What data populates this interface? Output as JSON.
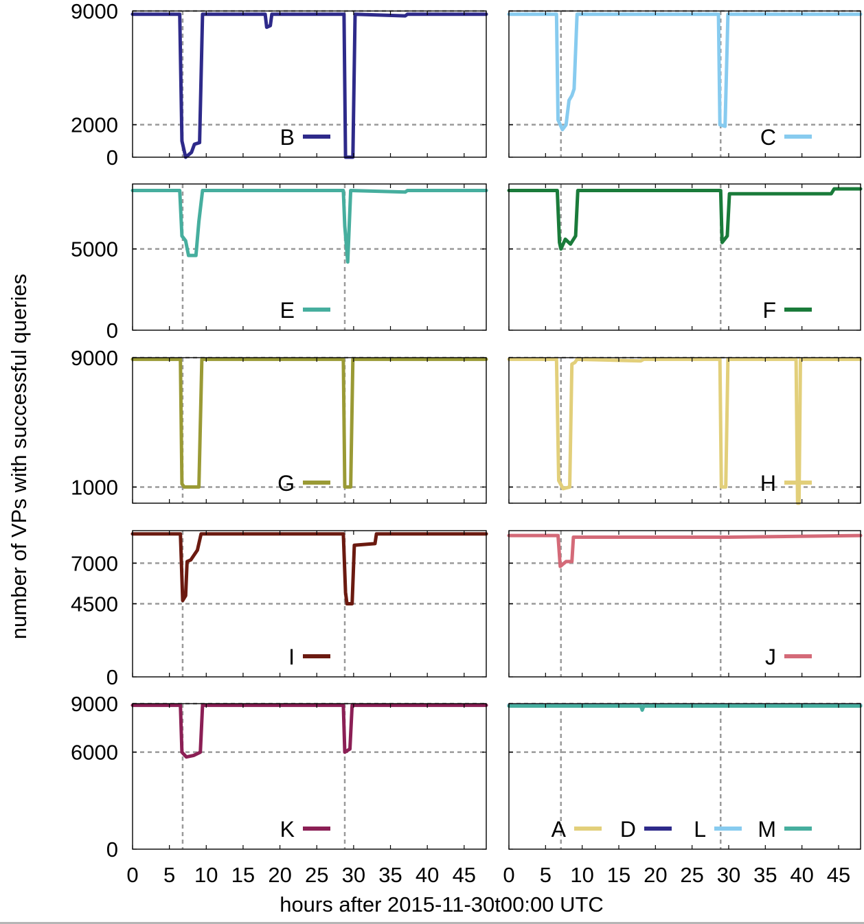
{
  "figure": {
    "ylabel": "number of VPs with successful queries",
    "xlabel": "hours after 2015-11-30t00:00 UTC"
  },
  "chart_data": [
    {
      "type": "line",
      "panel": "B",
      "xlim": [
        0,
        48
      ],
      "ylim": [
        0,
        9000
      ],
      "yticks": [
        0,
        2000,
        9000
      ],
      "xticks": [
        0,
        5,
        10,
        15,
        20,
        25,
        30,
        35,
        40,
        45
      ],
      "grid": {
        "y": [
          2000,
          9000
        ],
        "x": [
          6.8,
          28.8
        ]
      },
      "series": [
        {
          "name": "B",
          "color": "#2e2a8a",
          "points": [
            [
              0,
              8800
            ],
            [
              6.4,
              8800
            ],
            [
              6.7,
              1000
            ],
            [
              7.2,
              0
            ],
            [
              8.0,
              300
            ],
            [
              8.4,
              800
            ],
            [
              9.1,
              900
            ],
            [
              9.5,
              8800
            ],
            [
              18,
              8800
            ],
            [
              18.2,
              8000
            ],
            [
              18.7,
              8100
            ],
            [
              18.9,
              8800
            ],
            [
              28.7,
              8800
            ],
            [
              28.9,
              0
            ],
            [
              29.9,
              0
            ],
            [
              30.2,
              8800
            ],
            [
              37,
              8700
            ],
            [
              37.3,
              8800
            ],
            [
              48,
              8800
            ]
          ]
        }
      ],
      "legend": "bottom-center"
    },
    {
      "type": "line",
      "panel": "C",
      "xlim": [
        0,
        48
      ],
      "ylim": [
        0,
        9000
      ],
      "yticks": [
        0,
        2000,
        9000
      ],
      "xticks": [
        0,
        5,
        10,
        15,
        20,
        25,
        30,
        35,
        40,
        45
      ],
      "grid": {
        "y": [
          2000,
          9000
        ],
        "x": [
          7.1,
          28.9
        ]
      },
      "series": [
        {
          "name": "C",
          "color": "#87cbef",
          "points": [
            [
              0,
              8800
            ],
            [
              6.5,
              8800
            ],
            [
              6.7,
              2300
            ],
            [
              7.3,
              1700
            ],
            [
              7.8,
              2000
            ],
            [
              8.2,
              3500
            ],
            [
              8.6,
              3800
            ],
            [
              8.9,
              4200
            ],
            [
              9.3,
              8800
            ],
            [
              28.6,
              8800
            ],
            [
              28.8,
              2000
            ],
            [
              29.5,
              1900
            ],
            [
              29.9,
              8800
            ],
            [
              48,
              8800
            ]
          ]
        }
      ],
      "legend": "bottom-center"
    },
    {
      "type": "line",
      "panel": "E",
      "xlim": [
        0,
        48
      ],
      "ylim": [
        0,
        9000
      ],
      "yticks": [
        0,
        5000
      ],
      "xticks": [
        0,
        5,
        10,
        15,
        20,
        25,
        30,
        35,
        40,
        45
      ],
      "grid": {
        "y": [
          5000
        ],
        "x": [
          6.8,
          28.8
        ]
      },
      "series": [
        {
          "name": "E",
          "color": "#46ae9e",
          "points": [
            [
              0,
              8600
            ],
            [
              6.4,
              8600
            ],
            [
              6.7,
              5800
            ],
            [
              7.2,
              5500
            ],
            [
              7.6,
              4600
            ],
            [
              8.6,
              4600
            ],
            [
              9.0,
              6700
            ],
            [
              9.5,
              8600
            ],
            [
              28.6,
              8600
            ],
            [
              28.8,
              6400
            ],
            [
              29.2,
              4200
            ],
            [
              29.6,
              8600
            ],
            [
              37,
              8500
            ],
            [
              37.3,
              8600
            ],
            [
              48,
              8600
            ]
          ]
        }
      ],
      "legend": "bottom-center"
    },
    {
      "type": "line",
      "panel": "F",
      "xlim": [
        0,
        48
      ],
      "ylim": [
        0,
        9000
      ],
      "yticks": [
        0,
        5000
      ],
      "xticks": [
        0,
        5,
        10,
        15,
        20,
        25,
        30,
        35,
        40,
        45
      ],
      "grid": {
        "y": [
          5000
        ],
        "x": [
          7.1,
          28.9
        ]
      },
      "series": [
        {
          "name": "F",
          "color": "#1a7b3a",
          "points": [
            [
              0,
              8600
            ],
            [
              6.6,
              8600
            ],
            [
              6.9,
              5400
            ],
            [
              7.1,
              5000
            ],
            [
              7.7,
              5600
            ],
            [
              8.4,
              5300
            ],
            [
              9.1,
              5800
            ],
            [
              9.4,
              8600
            ],
            [
              28.9,
              8600
            ],
            [
              29.1,
              5400
            ],
            [
              29.8,
              5800
            ],
            [
              30.1,
              8400
            ],
            [
              40,
              8400
            ],
            [
              44,
              8400
            ],
            [
              44.4,
              8700
            ],
            [
              48,
              8700
            ]
          ]
        }
      ],
      "legend": "bottom-center"
    },
    {
      "type": "line",
      "panel": "G",
      "xlim": [
        0,
        48
      ],
      "ylim": [
        0,
        9000
      ],
      "yticks": [
        1000,
        9000
      ],
      "xticks": [
        0,
        5,
        10,
        15,
        20,
        25,
        30,
        35,
        40,
        45
      ],
      "grid": {
        "y": [
          1000,
          9000
        ],
        "x": [
          6.8,
          28.8
        ]
      },
      "series": [
        {
          "name": "G",
          "color": "#9a9a35",
          "points": [
            [
              0,
              8900
            ],
            [
              6.5,
              8900
            ],
            [
              6.7,
              1200
            ],
            [
              7.0,
              1000
            ],
            [
              8.2,
              1000
            ],
            [
              9.0,
              1000
            ],
            [
              9.4,
              8900
            ],
            [
              28.6,
              8900
            ],
            [
              28.8,
              1000
            ],
            [
              29.6,
              1000
            ],
            [
              29.9,
              8900
            ],
            [
              48,
              8900
            ]
          ]
        }
      ],
      "legend": "bottom-center"
    },
    {
      "type": "line",
      "panel": "H",
      "xlim": [
        0,
        48
      ],
      "ylim": [
        0,
        9000
      ],
      "yticks": [
        1000,
        9000
      ],
      "xticks": [
        0,
        5,
        10,
        15,
        20,
        25,
        30,
        35,
        40,
        45
      ],
      "grid": {
        "y": [
          1000,
          9000
        ],
        "x": [
          7.1,
          28.9
        ]
      },
      "series": [
        {
          "name": "H",
          "color": "#e2cf7a",
          "points": [
            [
              0,
              8900
            ],
            [
              6.5,
              8900
            ],
            [
              6.8,
              1400
            ],
            [
              7.4,
              900
            ],
            [
              8.3,
              1000
            ],
            [
              8.6,
              8600
            ],
            [
              9.0,
              8700
            ],
            [
              9.3,
              8900
            ],
            [
              18,
              8800
            ],
            [
              18.4,
              8900
            ],
            [
              28.8,
              8900
            ],
            [
              29.0,
              1000
            ],
            [
              29.6,
              1000
            ],
            [
              29.9,
              8900
            ],
            [
              39.2,
              8900
            ],
            [
              39.4,
              0
            ],
            [
              39.6,
              0
            ],
            [
              39.8,
              8900
            ],
            [
              48,
              8900
            ]
          ]
        }
      ],
      "legend": "bottom-center"
    },
    {
      "type": "line",
      "panel": "I",
      "xlim": [
        0,
        48
      ],
      "ylim": [
        0,
        9000
      ],
      "yticks": [
        0,
        4500,
        7000
      ],
      "xticks": [
        0,
        5,
        10,
        15,
        20,
        25,
        30,
        35,
        40,
        45
      ],
      "grid": {
        "y": [
          4500,
          7000
        ],
        "x": [
          6.8,
          28.8
        ]
      },
      "series": [
        {
          "name": "I",
          "color": "#6b1a10",
          "points": [
            [
              0,
              8800
            ],
            [
              6.5,
              8800
            ],
            [
              6.8,
              4700
            ],
            [
              7.2,
              5000
            ],
            [
              7.4,
              7100
            ],
            [
              7.9,
              7200
            ],
            [
              8.8,
              7800
            ],
            [
              9.3,
              8800
            ],
            [
              28.6,
              8800
            ],
            [
              28.9,
              5200
            ],
            [
              29.1,
              4500
            ],
            [
              29.8,
              4500
            ],
            [
              30.1,
              8100
            ],
            [
              32.9,
              8200
            ],
            [
              33.1,
              8800
            ],
            [
              48,
              8800
            ]
          ]
        }
      ],
      "legend": "bottom-center"
    },
    {
      "type": "line",
      "panel": "J",
      "xlim": [
        0,
        48
      ],
      "ylim": [
        0,
        9000
      ],
      "yticks": [
        0,
        4500,
        7000
      ],
      "xticks": [
        0,
        5,
        10,
        15,
        20,
        25,
        30,
        35,
        40,
        45
      ],
      "grid": {
        "y": [
          4500,
          7000
        ],
        "x": [
          7.1,
          28.9
        ]
      },
      "series": [
        {
          "name": "J",
          "color": "#d46a78",
          "points": [
            [
              0,
              8700
            ],
            [
              6.7,
              8700
            ],
            [
              7.0,
              6800
            ],
            [
              7.8,
              7100
            ],
            [
              8.6,
              7100
            ],
            [
              8.8,
              8600
            ],
            [
              30,
              8600
            ],
            [
              48,
              8700
            ]
          ]
        }
      ],
      "legend": "bottom-center"
    },
    {
      "type": "line",
      "panel": "K",
      "xlim": [
        0,
        48
      ],
      "ylim": [
        0,
        9000
      ],
      "yticks": [
        0,
        6000,
        9000
      ],
      "xticks": [
        0,
        5,
        10,
        15,
        20,
        25,
        30,
        35,
        40,
        45
      ],
      "grid": {
        "y": [
          6000,
          9000
        ],
        "x": [
          6.8,
          28.8
        ]
      },
      "series": [
        {
          "name": "K",
          "color": "#8b1f55",
          "points": [
            [
              0,
              8900
            ],
            [
              6.5,
              8900
            ],
            [
              6.7,
              6000
            ],
            [
              7.3,
              5700
            ],
            [
              8.3,
              5800
            ],
            [
              9.2,
              6000
            ],
            [
              9.5,
              8900
            ],
            [
              28.6,
              8900
            ],
            [
              28.8,
              6000
            ],
            [
              29.5,
              6200
            ],
            [
              29.8,
              8900
            ],
            [
              48,
              8900
            ]
          ]
        }
      ],
      "legend": "bottom-center"
    },
    {
      "type": "line",
      "panel": "A-D-L-M",
      "xlim": [
        0,
        48
      ],
      "ylim": [
        0,
        9000
      ],
      "yticks": [
        0,
        6000,
        9000
      ],
      "xticks": [
        0,
        5,
        10,
        15,
        20,
        25,
        30,
        35,
        40,
        45
      ],
      "grid": {
        "y": [
          6000,
          9000
        ],
        "x": [
          7.1,
          28.9
        ]
      },
      "series": [
        {
          "name": "A",
          "color": "#e2cf7a",
          "points": [
            [
              0,
              8900
            ],
            [
              48,
              8900
            ]
          ]
        },
        {
          "name": "D",
          "color": "#2e2a8a",
          "points": [
            [
              0,
              8900
            ],
            [
              48,
              8900
            ]
          ]
        },
        {
          "name": "L",
          "color": "#87cbef",
          "points": [
            [
              0,
              8900
            ],
            [
              18,
              8900
            ],
            [
              18.2,
              8600
            ],
            [
              18.4,
              8900
            ],
            [
              48,
              8900
            ]
          ]
        },
        {
          "name": "M",
          "color": "#46ae9e",
          "points": [
            [
              0,
              8850
            ],
            [
              18,
              8850
            ],
            [
              18.2,
              8600
            ],
            [
              18.4,
              8850
            ],
            [
              48,
              8850
            ]
          ]
        }
      ],
      "legend": "bottom-center"
    }
  ]
}
